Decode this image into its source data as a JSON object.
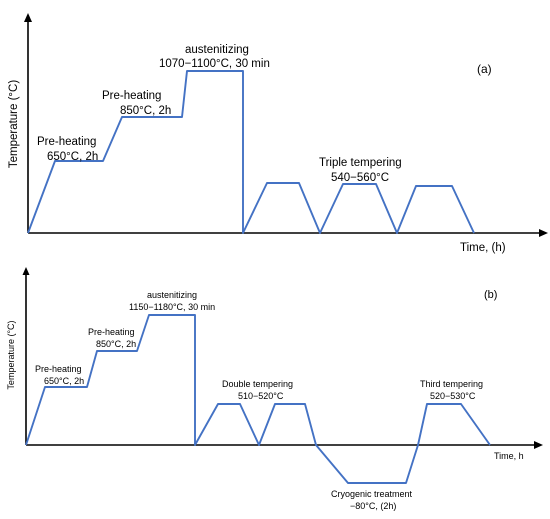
{
  "panel_a": {
    "tag": "(a)",
    "y_axis_label": "Temperature (°C)",
    "x_axis_label": "Time, (h)",
    "stages": {
      "preheat1_line1": "Pre-heating",
      "preheat1_line2": "650°C, 2h",
      "preheat2_line1": "Pre-heating",
      "preheat2_line2": "850°C, 2h",
      "aust_line1": "austenitizing",
      "aust_line2": "1070−1100°C, 30 min",
      "temper_line1": "Triple tempering",
      "temper_line2": "540−560°C"
    }
  },
  "panel_b": {
    "tag": "(b)",
    "y_axis_label": "Temperature (°C)",
    "x_axis_label": "Time, h",
    "stages": {
      "preheat1_line1": "Pre-heating",
      "preheat1_line2": "650°C, 2h",
      "preheat2_line1": "Pre-heating",
      "preheat2_line2": "850°C, 2h",
      "aust_line1": "austenitizing",
      "aust_line2": "1150−1180°C, 30 min",
      "double_line1": "Double tempering",
      "double_line2": "510−520°C",
      "third_line1": "Third tempering",
      "third_line2": "520−530°C",
      "cryo_line1": "Cryogenic treatment",
      "cryo_line2": "−80°C, (2h)"
    }
  }
}
